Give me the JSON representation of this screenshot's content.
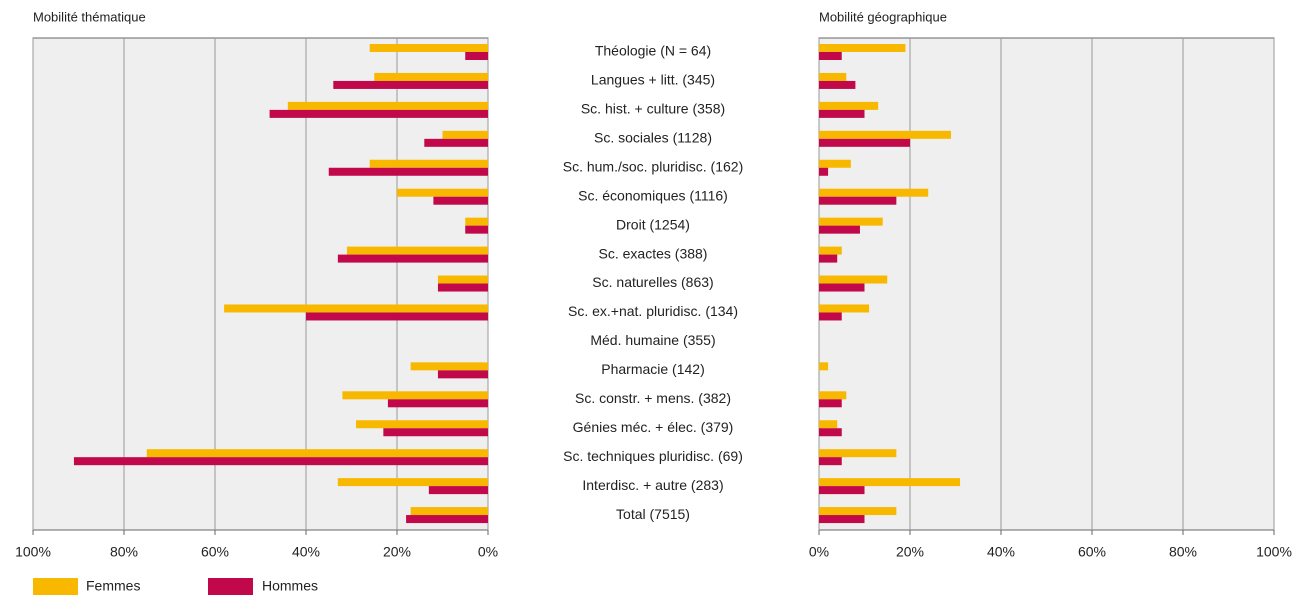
{
  "categories": [
    "Théologie (N = 64)",
    "Langues + litt. (345)",
    "Sc. hist. + culture (358)",
    "Sc. sociales (1128)",
    "Sc. hum./soc. pluridisc. (162)",
    "Sc. économiques (1116)",
    "Droit (1254)",
    "Sc. exactes (388)",
    "Sc. naturelles (863)",
    "Sc. ex.+nat. pluridisc. (134)",
    "Méd. humaine (355)",
    "Pharmacie (142)",
    "Sc. constr. + mens. (382)",
    "Génies méc. + élec. (379)",
    "Sc. techniques pluridisc. (69)",
    "Interdisc. + autre (283)",
    "Total (7515)"
  ],
  "chart_data": [
    {
      "type": "bar",
      "orientation": "horizontal",
      "title": "Mobilité thématique",
      "xlim": [
        100,
        0
      ],
      "xticks": [
        {
          "value": 100,
          "label": "100%"
        },
        {
          "value": 80,
          "label": "80%"
        },
        {
          "value": 60,
          "label": "60%"
        },
        {
          "value": 40,
          "label": "40%"
        },
        {
          "value": 20,
          "label": "20%"
        },
        {
          "value": 0,
          "label": "0%"
        }
      ],
      "grid": true,
      "series": [
        {
          "name": "Femmes",
          "color": "#f9b800",
          "values": [
            26,
            25,
            44,
            10,
            26,
            20,
            5,
            31,
            11,
            58,
            0,
            17,
            32,
            29,
            75,
            33,
            17
          ]
        },
        {
          "name": "Hommes",
          "color": "#c0084a",
          "values": [
            5,
            34,
            48,
            14,
            35,
            12,
            5,
            33,
            11,
            40,
            0,
            11,
            22,
            23,
            91,
            13,
            18
          ]
        }
      ]
    },
    {
      "type": "bar",
      "orientation": "horizontal",
      "title": "Mobilité géographique",
      "xlim": [
        0,
        100
      ],
      "xticks": [
        {
          "value": 0,
          "label": "0%"
        },
        {
          "value": 20,
          "label": "20%"
        },
        {
          "value": 40,
          "label": "40%"
        },
        {
          "value": 60,
          "label": "60%"
        },
        {
          "value": 80,
          "label": "80%"
        },
        {
          "value": 100,
          "label": "100%"
        }
      ],
      "grid": true,
      "series": [
        {
          "color": "#f9b800",
          "values": [
            19,
            6,
            13,
            29,
            7,
            24,
            14,
            5,
            15,
            11,
            0,
            2,
            6,
            4,
            17,
            31,
            17
          ]
        },
        {
          "color": "#c0084a",
          "values": [
            5,
            8,
            10,
            20,
            2,
            17,
            9,
            4,
            10,
            5,
            0,
            0,
            5,
            5,
            5,
            10,
            10
          ]
        }
      ]
    }
  ]
}
